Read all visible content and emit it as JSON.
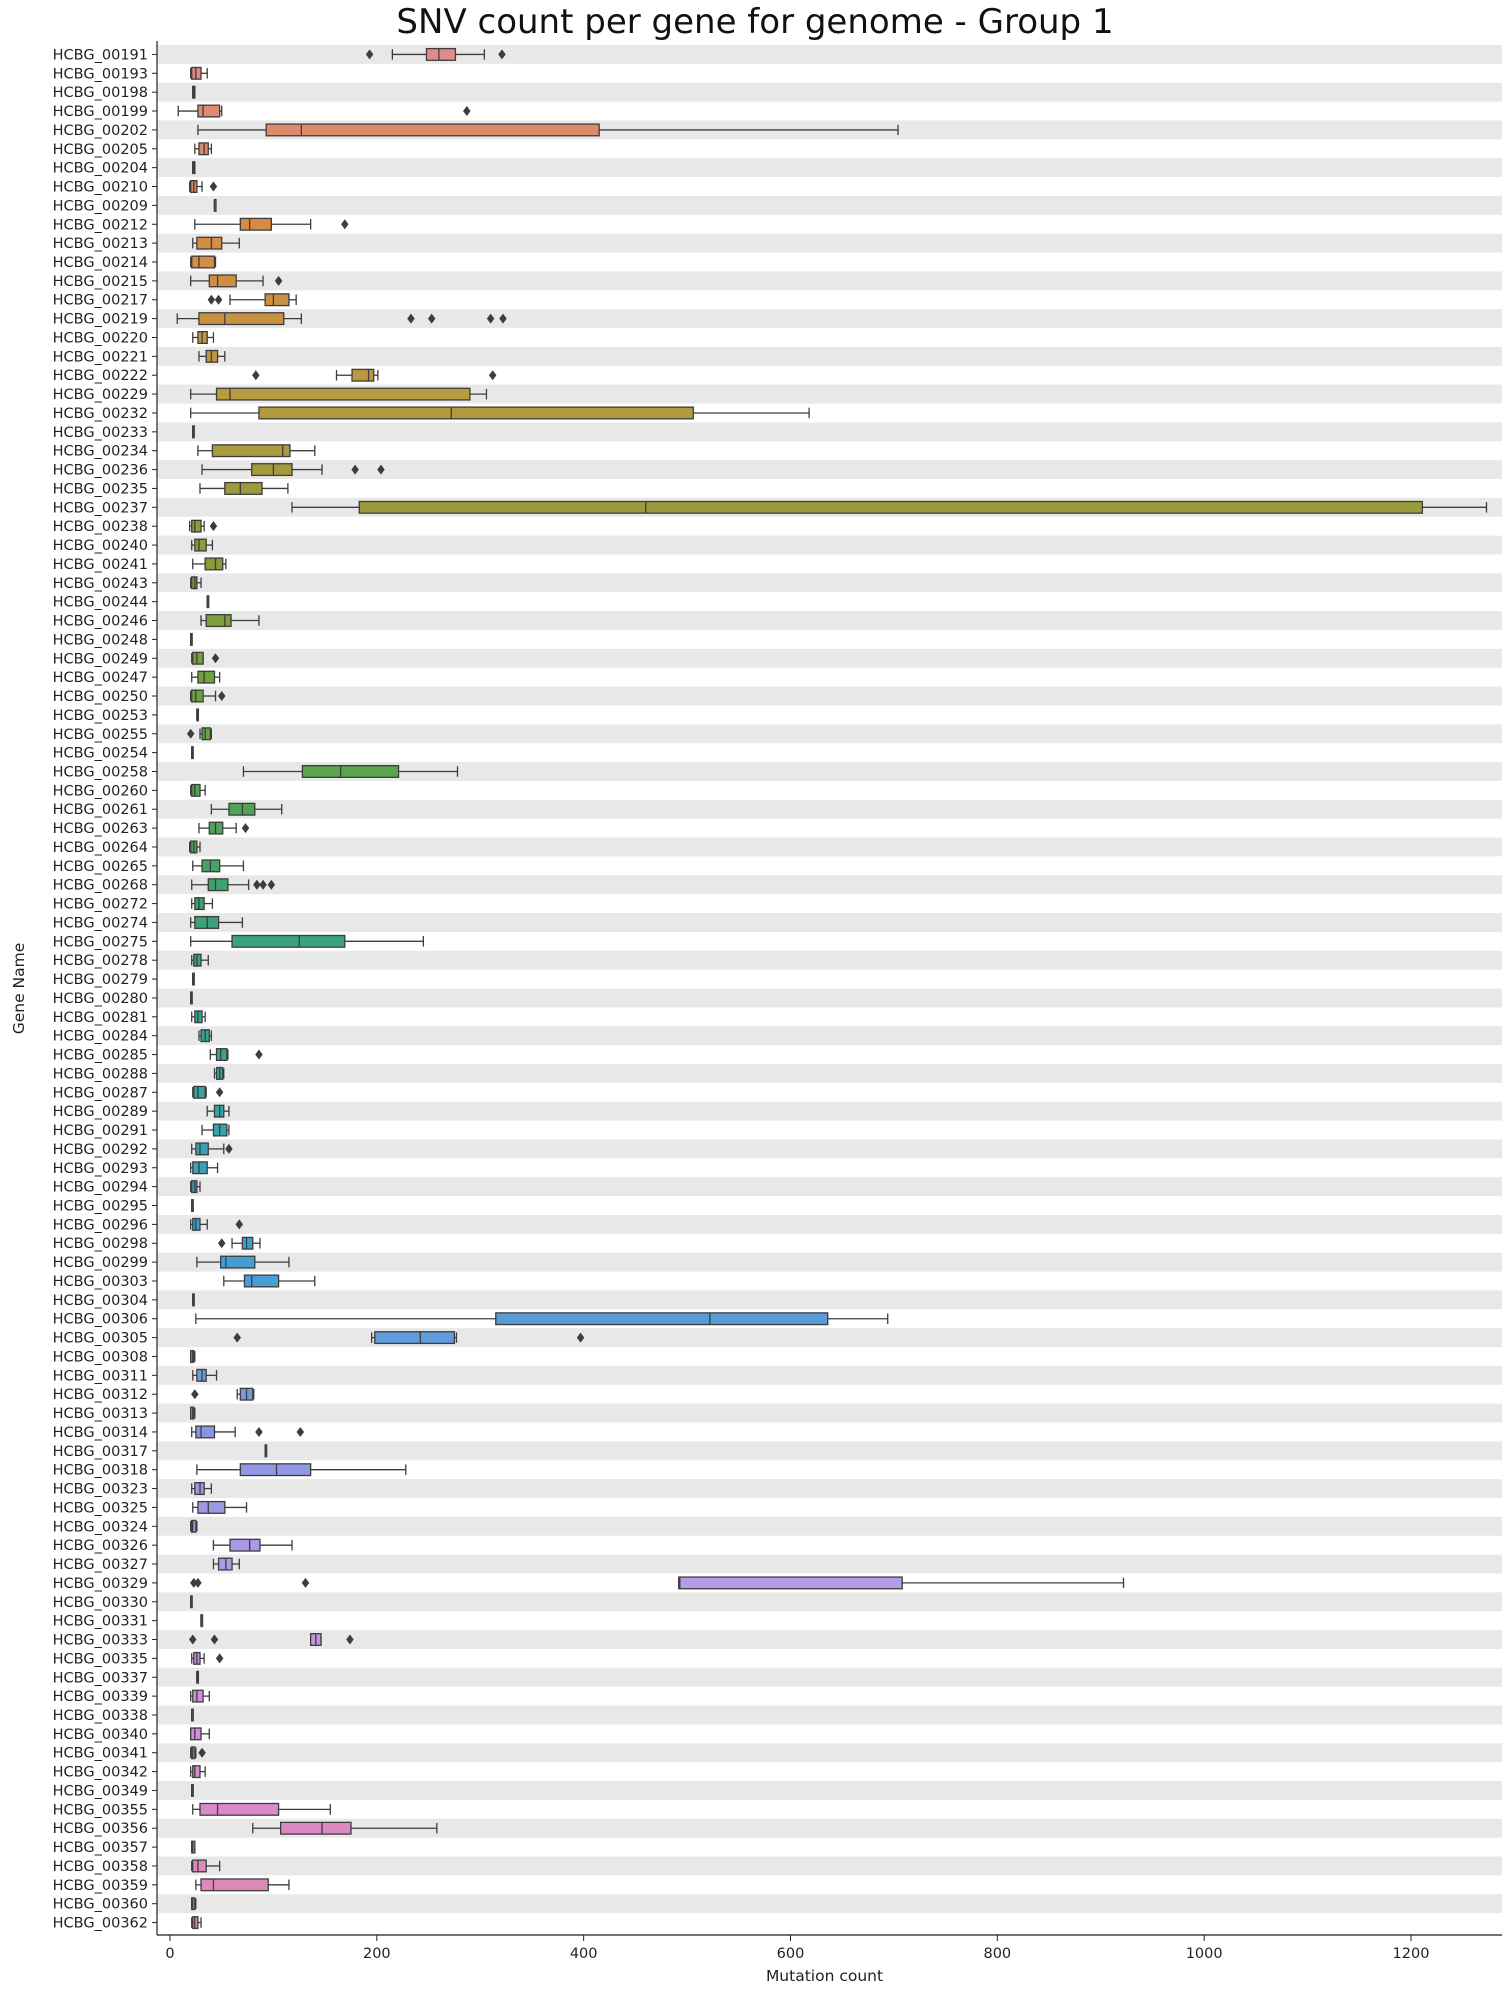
{
  "chart_data": {
    "type": "boxplot",
    "orientation": "horizontal",
    "title": "SNV count per gene for genome - Group 1",
    "xlabel": "Mutation count",
    "ylabel": "Gene Name",
    "xlim": [
      -8,
      1280
    ],
    "xticks": [
      0,
      200,
      400,
      600,
      800,
      1000,
      1200
    ],
    "grid": "alternating horizontal row bands",
    "legend": "none",
    "color_range": [
      "#e08c8c",
      "#d98a45",
      "#b89a3f",
      "#8a9a3a",
      "#63a640",
      "#3aa274",
      "#35a59b",
      "#3b9fd1",
      "#7f97e2",
      "#b79ae6",
      "#d98ad6",
      "#e08ab1"
    ],
    "genes": [
      {
        "name": "HCBG_00191",
        "q1": 248,
        "med": 260,
        "q3": 276,
        "wlo": 215,
        "whi": 304,
        "fliers": [
          193,
          321
        ]
      },
      {
        "name": "HCBG_00193",
        "q1": 21,
        "med": 25,
        "q3": 30,
        "wlo": 20,
        "whi": 36,
        "fliers": []
      },
      {
        "name": "HCBG_00198",
        "q1": 22,
        "med": 23,
        "q3": 24,
        "wlo": 22,
        "whi": 24,
        "fliers": []
      },
      {
        "name": "HCBG_00199",
        "q1": 27,
        "med": 32,
        "q3": 48,
        "wlo": 8,
        "whi": 50,
        "fliers": [
          287
        ]
      },
      {
        "name": "HCBG_00202",
        "q1": 93,
        "med": 127,
        "q3": 415,
        "wlo": 27,
        "whi": 704,
        "fliers": []
      },
      {
        "name": "HCBG_00205",
        "q1": 28,
        "med": 33,
        "q3": 37,
        "wlo": 24,
        "whi": 40,
        "fliers": []
      },
      {
        "name": "HCBG_00204",
        "q1": 22,
        "med": 23,
        "q3": 24,
        "wlo": 22,
        "whi": 24,
        "fliers": []
      },
      {
        "name": "HCBG_00210",
        "q1": 20,
        "med": 23,
        "q3": 26,
        "wlo": 19,
        "whi": 31,
        "fliers": [
          42
        ]
      },
      {
        "name": "HCBG_00209",
        "q1": 43,
        "med": 43,
        "q3": 44,
        "wlo": 43,
        "whi": 44,
        "fliers": []
      },
      {
        "name": "HCBG_00212",
        "q1": 68,
        "med": 77,
        "q3": 98,
        "wlo": 24,
        "whi": 136,
        "fliers": [
          169
        ]
      },
      {
        "name": "HCBG_00213",
        "q1": 26,
        "med": 40,
        "q3": 50,
        "wlo": 22,
        "whi": 67,
        "fliers": []
      },
      {
        "name": "HCBG_00214",
        "q1": 21,
        "med": 28,
        "q3": 43,
        "wlo": 20,
        "whi": 44,
        "fliers": []
      },
      {
        "name": "HCBG_00215",
        "q1": 38,
        "med": 46,
        "q3": 64,
        "wlo": 20,
        "whi": 90,
        "fliers": [
          105
        ]
      },
      {
        "name": "HCBG_00217",
        "q1": 92,
        "med": 100,
        "q3": 115,
        "wlo": 58,
        "whi": 122,
        "fliers": [
          40,
          47
        ]
      },
      {
        "name": "HCBG_00219",
        "q1": 28,
        "med": 53,
        "q3": 110,
        "wlo": 7,
        "whi": 127,
        "fliers": [
          233,
          253,
          310,
          322
        ]
      },
      {
        "name": "HCBG_00220",
        "q1": 27,
        "med": 31,
        "q3": 36,
        "wlo": 22,
        "whi": 42,
        "fliers": []
      },
      {
        "name": "HCBG_00221",
        "q1": 35,
        "med": 40,
        "q3": 46,
        "wlo": 28,
        "whi": 53,
        "fliers": []
      },
      {
        "name": "HCBG_00222",
        "q1": 176,
        "med": 192,
        "q3": 197,
        "wlo": 161,
        "whi": 201,
        "fliers": [
          83,
          312
        ]
      },
      {
        "name": "HCBG_00229",
        "q1": 45,
        "med": 58,
        "q3": 290,
        "wlo": 20,
        "whi": 306,
        "fliers": []
      },
      {
        "name": "HCBG_00232",
        "q1": 86,
        "med": 272,
        "q3": 506,
        "wlo": 20,
        "whi": 618,
        "fliers": []
      },
      {
        "name": "HCBG_00233",
        "q1": 22,
        "med": 22,
        "q3": 23,
        "wlo": 22,
        "whi": 23,
        "fliers": []
      },
      {
        "name": "HCBG_00234",
        "q1": 41,
        "med": 109,
        "q3": 116,
        "wlo": 27,
        "whi": 140,
        "fliers": []
      },
      {
        "name": "HCBG_00236",
        "q1": 79,
        "med": 100,
        "q3": 118,
        "wlo": 31,
        "whi": 147,
        "fliers": [
          179,
          204
        ]
      },
      {
        "name": "HCBG_00235",
        "q1": 53,
        "med": 68,
        "q3": 89,
        "wlo": 29,
        "whi": 114,
        "fliers": []
      },
      {
        "name": "HCBG_00237",
        "q1": 183,
        "med": 460,
        "q3": 1211,
        "wlo": 118,
        "whi": 1273,
        "fliers": []
      },
      {
        "name": "HCBG_00238",
        "q1": 21,
        "med": 24,
        "q3": 30,
        "wlo": 19,
        "whi": 33,
        "fliers": [
          42
        ]
      },
      {
        "name": "HCBG_00240",
        "q1": 24,
        "med": 28,
        "q3": 35,
        "wlo": 21,
        "whi": 41,
        "fliers": []
      },
      {
        "name": "HCBG_00241",
        "q1": 34,
        "med": 44,
        "q3": 51,
        "wlo": 22,
        "whi": 54,
        "fliers": []
      },
      {
        "name": "HCBG_00243",
        "q1": 21,
        "med": 24,
        "q3": 26,
        "wlo": 20,
        "whi": 30,
        "fliers": []
      },
      {
        "name": "HCBG_00244",
        "q1": 36,
        "med": 36,
        "q3": 37,
        "wlo": 36,
        "whi": 37,
        "fliers": []
      },
      {
        "name": "HCBG_00246",
        "q1": 35,
        "med": 53,
        "q3": 59,
        "wlo": 30,
        "whi": 86,
        "fliers": []
      },
      {
        "name": "HCBG_00248",
        "q1": 20,
        "med": 20,
        "q3": 21,
        "wlo": 20,
        "whi": 21,
        "fliers": []
      },
      {
        "name": "HCBG_00249",
        "q1": 22,
        "med": 26,
        "q3": 32,
        "wlo": 21,
        "whi": 32,
        "fliers": [
          44
        ]
      },
      {
        "name": "HCBG_00247",
        "q1": 27,
        "med": 33,
        "q3": 43,
        "wlo": 21,
        "whi": 48,
        "fliers": []
      },
      {
        "name": "HCBG_00250",
        "q1": 21,
        "med": 25,
        "q3": 32,
        "wlo": 20,
        "whi": 44,
        "fliers": [
          50
        ]
      },
      {
        "name": "HCBG_00253",
        "q1": 26,
        "med": 27,
        "q3": 27,
        "wlo": 26,
        "whi": 27,
        "fliers": []
      },
      {
        "name": "HCBG_00255",
        "q1": 31,
        "med": 34,
        "q3": 39,
        "wlo": 29,
        "whi": 40,
        "fliers": [
          20
        ]
      },
      {
        "name": "HCBG_00254",
        "q1": 21,
        "med": 22,
        "q3": 22,
        "wlo": 21,
        "whi": 22,
        "fliers": []
      },
      {
        "name": "HCBG_00258",
        "q1": 128,
        "med": 165,
        "q3": 221,
        "wlo": 71,
        "whi": 278,
        "fliers": []
      },
      {
        "name": "HCBG_00260",
        "q1": 21,
        "med": 24,
        "q3": 29,
        "wlo": 20,
        "whi": 34,
        "fliers": []
      },
      {
        "name": "HCBG_00261",
        "q1": 57,
        "med": 70,
        "q3": 82,
        "wlo": 40,
        "whi": 108,
        "fliers": []
      },
      {
        "name": "HCBG_00263",
        "q1": 38,
        "med": 44,
        "q3": 51,
        "wlo": 28,
        "whi": 64,
        "fliers": [
          73
        ]
      },
      {
        "name": "HCBG_00264",
        "q1": 20,
        "med": 23,
        "q3": 26,
        "wlo": 19,
        "whi": 29,
        "fliers": []
      },
      {
        "name": "HCBG_00265",
        "q1": 31,
        "med": 39,
        "q3": 48,
        "wlo": 22,
        "whi": 71,
        "fliers": []
      },
      {
        "name": "HCBG_00268",
        "q1": 37,
        "med": 44,
        "q3": 56,
        "wlo": 21,
        "whi": 76,
        "fliers": [
          84,
          90,
          98
        ]
      },
      {
        "name": "HCBG_00272",
        "q1": 24,
        "med": 28,
        "q3": 33,
        "wlo": 21,
        "whi": 41,
        "fliers": []
      },
      {
        "name": "HCBG_00274",
        "q1": 24,
        "med": 36,
        "q3": 47,
        "wlo": 20,
        "whi": 70,
        "fliers": []
      },
      {
        "name": "HCBG_00275",
        "q1": 60,
        "med": 125,
        "q3": 169,
        "wlo": 20,
        "whi": 245,
        "fliers": []
      },
      {
        "name": "HCBG_00278",
        "q1": 23,
        "med": 26,
        "q3": 30,
        "wlo": 21,
        "whi": 37,
        "fliers": []
      },
      {
        "name": "HCBG_00279",
        "q1": 22,
        "med": 22,
        "q3": 23,
        "wlo": 22,
        "whi": 23,
        "fliers": []
      },
      {
        "name": "HCBG_00280",
        "q1": 20,
        "med": 21,
        "q3": 21,
        "wlo": 20,
        "whi": 21,
        "fliers": []
      },
      {
        "name": "HCBG_00281",
        "q1": 24,
        "med": 27,
        "q3": 31,
        "wlo": 21,
        "whi": 34,
        "fliers": []
      },
      {
        "name": "HCBG_00284",
        "q1": 30,
        "med": 34,
        "q3": 38,
        "wlo": 28,
        "whi": 40,
        "fliers": []
      },
      {
        "name": "HCBG_00285",
        "q1": 45,
        "med": 49,
        "q3": 55,
        "wlo": 39,
        "whi": 56,
        "fliers": [
          86
        ]
      },
      {
        "name": "HCBG_00288",
        "q1": 45,
        "med": 48,
        "q3": 51,
        "wlo": 43,
        "whi": 52,
        "fliers": []
      },
      {
        "name": "HCBG_00287",
        "q1": 23,
        "med": 27,
        "q3": 34,
        "wlo": 22,
        "whi": 35,
        "fliers": [
          48
        ]
      },
      {
        "name": "HCBG_00289",
        "q1": 43,
        "med": 48,
        "q3": 52,
        "wlo": 36,
        "whi": 57,
        "fliers": []
      },
      {
        "name": "HCBG_00291",
        "q1": 42,
        "med": 48,
        "q3": 55,
        "wlo": 31,
        "whi": 57,
        "fliers": []
      },
      {
        "name": "HCBG_00292",
        "q1": 25,
        "med": 29,
        "q3": 37,
        "wlo": 21,
        "whi": 52,
        "fliers": [
          57
        ]
      },
      {
        "name": "HCBG_00293",
        "q1": 22,
        "med": 28,
        "q3": 36,
        "wlo": 20,
        "whi": 46,
        "fliers": []
      },
      {
        "name": "HCBG_00294",
        "q1": 21,
        "med": 24,
        "q3": 26,
        "wlo": 20,
        "whi": 29,
        "fliers": []
      },
      {
        "name": "HCBG_00295",
        "q1": 21,
        "med": 22,
        "q3": 22,
        "wlo": 21,
        "whi": 22,
        "fliers": []
      },
      {
        "name": "HCBG_00296",
        "q1": 22,
        "med": 25,
        "q3": 29,
        "wlo": 20,
        "whi": 36,
        "fliers": [
          67
        ]
      },
      {
        "name": "HCBG_00298",
        "q1": 70,
        "med": 74,
        "q3": 80,
        "wlo": 60,
        "whi": 87,
        "fliers": [
          50
        ]
      },
      {
        "name": "HCBG_00299",
        "q1": 49,
        "med": 54,
        "q3": 82,
        "wlo": 26,
        "whi": 115,
        "fliers": []
      },
      {
        "name": "HCBG_00303",
        "q1": 72,
        "med": 79,
        "q3": 105,
        "wlo": 52,
        "whi": 140,
        "fliers": []
      },
      {
        "name": "HCBG_00304",
        "q1": 22,
        "med": 22,
        "q3": 23,
        "wlo": 22,
        "whi": 23,
        "fliers": []
      },
      {
        "name": "HCBG_00306",
        "q1": 315,
        "med": 522,
        "q3": 636,
        "wlo": 25,
        "whi": 694,
        "fliers": []
      },
      {
        "name": "HCBG_00305",
        "q1": 198,
        "med": 242,
        "q3": 275,
        "wlo": 195,
        "whi": 277,
        "fliers": [
          65,
          397
        ]
      },
      {
        "name": "HCBG_00308",
        "q1": 20,
        "med": 22,
        "q3": 23,
        "wlo": 20,
        "whi": 24,
        "fliers": []
      },
      {
        "name": "HCBG_00311",
        "q1": 26,
        "med": 31,
        "q3": 35,
        "wlo": 22,
        "whi": 45,
        "fliers": []
      },
      {
        "name": "HCBG_00312",
        "q1": 68,
        "med": 74,
        "q3": 80,
        "wlo": 65,
        "whi": 81,
        "fliers": [
          24
        ]
      },
      {
        "name": "HCBG_00313",
        "q1": 20,
        "med": 22,
        "q3": 23,
        "wlo": 20,
        "whi": 24,
        "fliers": []
      },
      {
        "name": "HCBG_00314",
        "q1": 25,
        "med": 30,
        "q3": 43,
        "wlo": 21,
        "whi": 63,
        "fliers": [
          86,
          126
        ]
      },
      {
        "name": "HCBG_00317",
        "q1": 92,
        "med": 92,
        "q3": 93,
        "wlo": 92,
        "whi": 93,
        "fliers": []
      },
      {
        "name": "HCBG_00318",
        "q1": 68,
        "med": 103,
        "q3": 136,
        "wlo": 26,
        "whi": 228,
        "fliers": []
      },
      {
        "name": "HCBG_00323",
        "q1": 24,
        "med": 29,
        "q3": 33,
        "wlo": 21,
        "whi": 40,
        "fliers": []
      },
      {
        "name": "HCBG_00325",
        "q1": 27,
        "med": 37,
        "q3": 53,
        "wlo": 22,
        "whi": 74,
        "fliers": []
      },
      {
        "name": "HCBG_00324",
        "q1": 21,
        "med": 22,
        "q3": 25,
        "wlo": 20,
        "whi": 26,
        "fliers": []
      },
      {
        "name": "HCBG_00326",
        "q1": 58,
        "med": 77,
        "q3": 87,
        "wlo": 42,
        "whi": 118,
        "fliers": []
      },
      {
        "name": "HCBG_00327",
        "q1": 47,
        "med": 54,
        "q3": 60,
        "wlo": 42,
        "whi": 67,
        "fliers": []
      },
      {
        "name": "HCBG_00329",
        "q1": 492,
        "med": 493,
        "q3": 708,
        "wlo": 492,
        "whi": 922,
        "fliers": [
          23,
          27,
          131
        ]
      },
      {
        "name": "HCBG_00330",
        "q1": 20,
        "med": 20,
        "q3": 21,
        "wlo": 20,
        "whi": 21,
        "fliers": []
      },
      {
        "name": "HCBG_00331",
        "q1": 30,
        "med": 30,
        "q3": 31,
        "wlo": 30,
        "whi": 31,
        "fliers": []
      },
      {
        "name": "HCBG_00333",
        "q1": 136,
        "med": 141,
        "q3": 146,
        "wlo": 136,
        "whi": 146,
        "fliers": [
          22,
          43,
          174
        ]
      },
      {
        "name": "HCBG_00335",
        "q1": 23,
        "med": 26,
        "q3": 29,
        "wlo": 21,
        "whi": 33,
        "fliers": [
          48
        ]
      },
      {
        "name": "HCBG_00337",
        "q1": 26,
        "med": 27,
        "q3": 27,
        "wlo": 26,
        "whi": 27,
        "fliers": []
      },
      {
        "name": "HCBG_00339",
        "q1": 22,
        "med": 26,
        "q3": 32,
        "wlo": 20,
        "whi": 38,
        "fliers": []
      },
      {
        "name": "HCBG_00338",
        "q1": 21,
        "med": 21,
        "q3": 22,
        "wlo": 21,
        "whi": 22,
        "fliers": []
      },
      {
        "name": "HCBG_00340",
        "q1": 20,
        "med": 24,
        "q3": 30,
        "wlo": 20,
        "whi": 38,
        "fliers": []
      },
      {
        "name": "HCBG_00341",
        "q1": 21,
        "med": 22,
        "q3": 24,
        "wlo": 20,
        "whi": 25,
        "fliers": [
          31
        ]
      },
      {
        "name": "HCBG_00342",
        "q1": 22,
        "med": 24,
        "q3": 29,
        "wlo": 20,
        "whi": 34,
        "fliers": []
      },
      {
        "name": "HCBG_00349",
        "q1": 21,
        "med": 21,
        "q3": 22,
        "wlo": 21,
        "whi": 22,
        "fliers": []
      },
      {
        "name": "HCBG_00355",
        "q1": 29,
        "med": 46,
        "q3": 105,
        "wlo": 22,
        "whi": 155,
        "fliers": []
      },
      {
        "name": "HCBG_00356",
        "q1": 107,
        "med": 147,
        "q3": 175,
        "wlo": 80,
        "whi": 258,
        "fliers": []
      },
      {
        "name": "HCBG_00357",
        "q1": 21,
        "med": 22,
        "q3": 24,
        "wlo": 21,
        "whi": 24,
        "fliers": []
      },
      {
        "name": "HCBG_00358",
        "q1": 22,
        "med": 27,
        "q3": 35,
        "wlo": 21,
        "whi": 48,
        "fliers": []
      },
      {
        "name": "HCBG_00359",
        "q1": 30,
        "med": 42,
        "q3": 95,
        "wlo": 25,
        "whi": 115,
        "fliers": []
      },
      {
        "name": "HCBG_00360",
        "q1": 21,
        "med": 22,
        "q3": 24,
        "wlo": 21,
        "whi": 25,
        "fliers": []
      },
      {
        "name": "HCBG_00362",
        "q1": 22,
        "med": 24,
        "q3": 27,
        "wlo": 21,
        "whi": 30,
        "fliers": []
      }
    ]
  }
}
